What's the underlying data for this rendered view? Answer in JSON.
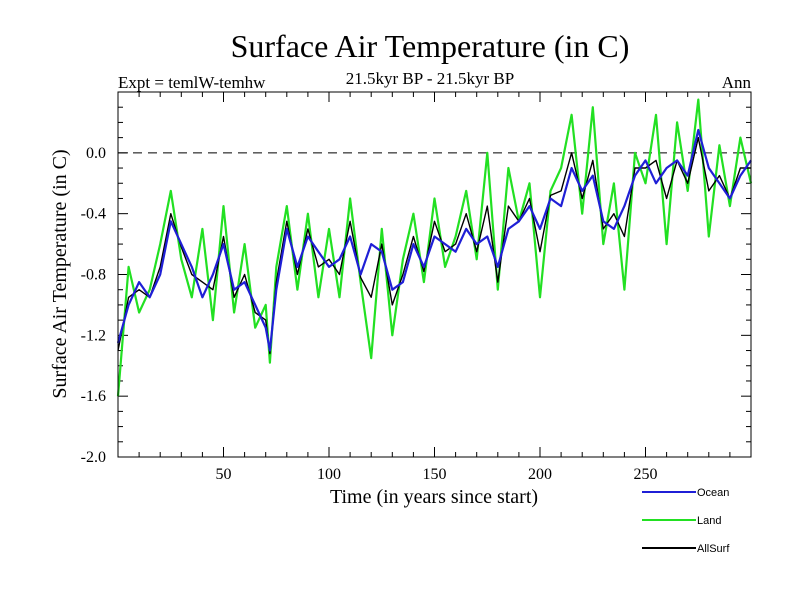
{
  "chart_data": {
    "type": "line",
    "title": "Surface Air Temperature (in C)",
    "subtitle": "21.5kyr BP - 21.5kyr BP",
    "expt_label": "Expt = temlW-temhw",
    "period_label": "Ann",
    "xlabel": "Time (in years since start)",
    "ylabel": "Surface Air Temperature (in C)",
    "xlim": [
      0,
      300
    ],
    "ylim": [
      -2.0,
      0.4
    ],
    "x_ticks": [
      50,
      100,
      150,
      200,
      250
    ],
    "y_ticks": [
      -2.0,
      -1.6,
      -1.2,
      -0.8,
      -0.4,
      0.0
    ],
    "y_tick_labels": [
      "-2.0",
      "-1.6",
      "-1.2",
      "-0.8",
      "-0.4",
      "0.0"
    ],
    "zero_line": 0.0,
    "legend_position": "bottom-right",
    "series": [
      {
        "name": "Ocean",
        "color": "#1f1fd6",
        "x": [
          0,
          5,
          10,
          15,
          20,
          25,
          30,
          35,
          40,
          45,
          50,
          55,
          60,
          65,
          70,
          72,
          75,
          80,
          85,
          90,
          95,
          100,
          105,
          110,
          115,
          120,
          125,
          130,
          135,
          140,
          145,
          150,
          155,
          160,
          165,
          170,
          175,
          180,
          185,
          190,
          195,
          200,
          205,
          210,
          215,
          220,
          225,
          230,
          235,
          240,
          245,
          250,
          255,
          260,
          265,
          270,
          275,
          280,
          285,
          290,
          295,
          300
        ],
        "values": [
          -1.25,
          -1.0,
          -0.85,
          -0.95,
          -0.8,
          -0.45,
          -0.6,
          -0.75,
          -0.95,
          -0.8,
          -0.6,
          -0.9,
          -0.85,
          -1.0,
          -1.15,
          -1.3,
          -0.9,
          -0.5,
          -0.75,
          -0.55,
          -0.65,
          -0.75,
          -0.7,
          -0.55,
          -0.8,
          -0.6,
          -0.65,
          -0.9,
          -0.85,
          -0.6,
          -0.75,
          -0.55,
          -0.6,
          -0.65,
          -0.5,
          -0.6,
          -0.55,
          -0.75,
          -0.5,
          -0.45,
          -0.35,
          -0.5,
          -0.3,
          -0.35,
          -0.1,
          -0.25,
          -0.15,
          -0.45,
          -0.5,
          -0.35,
          -0.15,
          -0.05,
          -0.2,
          -0.1,
          -0.05,
          -0.15,
          0.15,
          -0.1,
          -0.2,
          -0.3,
          -0.15,
          -0.05
        ]
      },
      {
        "name": "Land",
        "color": "#22e022",
        "x": [
          0,
          5,
          10,
          15,
          20,
          25,
          30,
          35,
          40,
          45,
          50,
          55,
          60,
          65,
          70,
          72,
          75,
          80,
          85,
          90,
          95,
          100,
          105,
          110,
          115,
          120,
          125,
          130,
          135,
          140,
          145,
          150,
          155,
          160,
          165,
          170,
          175,
          180,
          185,
          190,
          195,
          200,
          205,
          210,
          215,
          220,
          225,
          230,
          235,
          240,
          245,
          250,
          255,
          260,
          265,
          270,
          275,
          280,
          285,
          290,
          295,
          300
        ],
        "values": [
          -1.6,
          -0.75,
          -1.05,
          -0.9,
          -0.6,
          -0.25,
          -0.7,
          -0.95,
          -0.5,
          -1.1,
          -0.35,
          -1.05,
          -0.6,
          -1.15,
          -1.0,
          -1.38,
          -0.75,
          -0.35,
          -0.9,
          -0.4,
          -0.95,
          -0.5,
          -0.95,
          -0.3,
          -0.85,
          -1.35,
          -0.5,
          -1.2,
          -0.7,
          -0.4,
          -0.85,
          -0.3,
          -0.75,
          -0.55,
          -0.25,
          -0.7,
          0.0,
          -0.9,
          -0.1,
          -0.45,
          -0.2,
          -0.95,
          -0.25,
          -0.1,
          0.25,
          -0.4,
          0.3,
          -0.6,
          -0.2,
          -0.9,
          0.0,
          -0.2,
          0.25,
          -0.6,
          0.2,
          -0.25,
          0.35,
          -0.55,
          0.05,
          -0.35,
          0.1,
          -0.2
        ]
      },
      {
        "name": "AllSurf",
        "color": "#000000",
        "x": [
          0,
          5,
          10,
          15,
          20,
          25,
          30,
          35,
          40,
          45,
          50,
          55,
          60,
          65,
          70,
          72,
          75,
          80,
          85,
          90,
          95,
          100,
          105,
          110,
          115,
          120,
          125,
          130,
          135,
          140,
          145,
          150,
          155,
          160,
          165,
          170,
          175,
          180,
          185,
          190,
          195,
          200,
          205,
          210,
          215,
          220,
          225,
          230,
          235,
          240,
          245,
          250,
          255,
          260,
          265,
          270,
          275,
          280,
          285,
          290,
          295,
          300
        ],
        "values": [
          -1.3,
          -0.95,
          -0.9,
          -0.95,
          -0.75,
          -0.4,
          -0.62,
          -0.8,
          -0.85,
          -0.9,
          -0.55,
          -0.95,
          -0.8,
          -1.05,
          -1.1,
          -1.32,
          -0.85,
          -0.45,
          -0.8,
          -0.5,
          -0.75,
          -0.7,
          -0.8,
          -0.45,
          -0.82,
          -0.95,
          -0.6,
          -1.0,
          -0.8,
          -0.55,
          -0.78,
          -0.45,
          -0.65,
          -0.6,
          -0.4,
          -0.65,
          -0.35,
          -0.85,
          -0.35,
          -0.45,
          -0.3,
          -0.65,
          -0.28,
          -0.25,
          0.0,
          -0.3,
          -0.05,
          -0.5,
          -0.4,
          -0.55,
          -0.1,
          -0.1,
          -0.05,
          -0.3,
          -0.05,
          -0.2,
          0.1,
          -0.25,
          -0.15,
          -0.3,
          -0.1,
          -0.1
        ]
      }
    ]
  }
}
